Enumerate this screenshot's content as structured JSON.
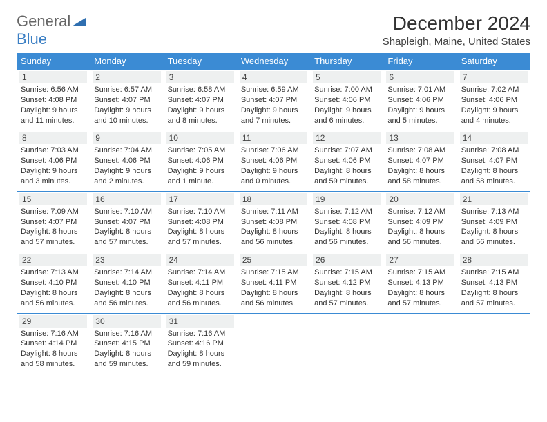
{
  "logo": {
    "part1": "General",
    "part2": "Blue"
  },
  "title": "December 2024",
  "location": "Shapleigh, Maine, United States",
  "colors": {
    "header_bg": "#3b8bd4",
    "daynum_bg": "#eef0f0",
    "border": "#3b8bd4"
  },
  "day_headers": [
    "Sunday",
    "Monday",
    "Tuesday",
    "Wednesday",
    "Thursday",
    "Friday",
    "Saturday"
  ],
  "weeks": [
    [
      {
        "n": "1",
        "sunrise": "6:56 AM",
        "sunset": "4:08 PM",
        "daylight": "9 hours and 11 minutes."
      },
      {
        "n": "2",
        "sunrise": "6:57 AM",
        "sunset": "4:07 PM",
        "daylight": "9 hours and 10 minutes."
      },
      {
        "n": "3",
        "sunrise": "6:58 AM",
        "sunset": "4:07 PM",
        "daylight": "9 hours and 8 minutes."
      },
      {
        "n": "4",
        "sunrise": "6:59 AM",
        "sunset": "4:07 PM",
        "daylight": "9 hours and 7 minutes."
      },
      {
        "n": "5",
        "sunrise": "7:00 AM",
        "sunset": "4:06 PM",
        "daylight": "9 hours and 6 minutes."
      },
      {
        "n": "6",
        "sunrise": "7:01 AM",
        "sunset": "4:06 PM",
        "daylight": "9 hours and 5 minutes."
      },
      {
        "n": "7",
        "sunrise": "7:02 AM",
        "sunset": "4:06 PM",
        "daylight": "9 hours and 4 minutes."
      }
    ],
    [
      {
        "n": "8",
        "sunrise": "7:03 AM",
        "sunset": "4:06 PM",
        "daylight": "9 hours and 3 minutes."
      },
      {
        "n": "9",
        "sunrise": "7:04 AM",
        "sunset": "4:06 PM",
        "daylight": "9 hours and 2 minutes."
      },
      {
        "n": "10",
        "sunrise": "7:05 AM",
        "sunset": "4:06 PM",
        "daylight": "9 hours and 1 minute."
      },
      {
        "n": "11",
        "sunrise": "7:06 AM",
        "sunset": "4:06 PM",
        "daylight": "9 hours and 0 minutes."
      },
      {
        "n": "12",
        "sunrise": "7:07 AM",
        "sunset": "4:06 PM",
        "daylight": "8 hours and 59 minutes."
      },
      {
        "n": "13",
        "sunrise": "7:08 AM",
        "sunset": "4:07 PM",
        "daylight": "8 hours and 58 minutes."
      },
      {
        "n": "14",
        "sunrise": "7:08 AM",
        "sunset": "4:07 PM",
        "daylight": "8 hours and 58 minutes."
      }
    ],
    [
      {
        "n": "15",
        "sunrise": "7:09 AM",
        "sunset": "4:07 PM",
        "daylight": "8 hours and 57 minutes."
      },
      {
        "n": "16",
        "sunrise": "7:10 AM",
        "sunset": "4:07 PM",
        "daylight": "8 hours and 57 minutes."
      },
      {
        "n": "17",
        "sunrise": "7:10 AM",
        "sunset": "4:08 PM",
        "daylight": "8 hours and 57 minutes."
      },
      {
        "n": "18",
        "sunrise": "7:11 AM",
        "sunset": "4:08 PM",
        "daylight": "8 hours and 56 minutes."
      },
      {
        "n": "19",
        "sunrise": "7:12 AM",
        "sunset": "4:08 PM",
        "daylight": "8 hours and 56 minutes."
      },
      {
        "n": "20",
        "sunrise": "7:12 AM",
        "sunset": "4:09 PM",
        "daylight": "8 hours and 56 minutes."
      },
      {
        "n": "21",
        "sunrise": "7:13 AM",
        "sunset": "4:09 PM",
        "daylight": "8 hours and 56 minutes."
      }
    ],
    [
      {
        "n": "22",
        "sunrise": "7:13 AM",
        "sunset": "4:10 PM",
        "daylight": "8 hours and 56 minutes."
      },
      {
        "n": "23",
        "sunrise": "7:14 AM",
        "sunset": "4:10 PM",
        "daylight": "8 hours and 56 minutes."
      },
      {
        "n": "24",
        "sunrise": "7:14 AM",
        "sunset": "4:11 PM",
        "daylight": "8 hours and 56 minutes."
      },
      {
        "n": "25",
        "sunrise": "7:15 AM",
        "sunset": "4:11 PM",
        "daylight": "8 hours and 56 minutes."
      },
      {
        "n": "26",
        "sunrise": "7:15 AM",
        "sunset": "4:12 PM",
        "daylight": "8 hours and 57 minutes."
      },
      {
        "n": "27",
        "sunrise": "7:15 AM",
        "sunset": "4:13 PM",
        "daylight": "8 hours and 57 minutes."
      },
      {
        "n": "28",
        "sunrise": "7:15 AM",
        "sunset": "4:13 PM",
        "daylight": "8 hours and 57 minutes."
      }
    ],
    [
      {
        "n": "29",
        "sunrise": "7:16 AM",
        "sunset": "4:14 PM",
        "daylight": "8 hours and 58 minutes."
      },
      {
        "n": "30",
        "sunrise": "7:16 AM",
        "sunset": "4:15 PM",
        "daylight": "8 hours and 59 minutes."
      },
      {
        "n": "31",
        "sunrise": "7:16 AM",
        "sunset": "4:16 PM",
        "daylight": "8 hours and 59 minutes."
      },
      null,
      null,
      null,
      null
    ]
  ],
  "labels": {
    "sunrise": "Sunrise: ",
    "sunset": "Sunset: ",
    "daylight": "Daylight: "
  }
}
